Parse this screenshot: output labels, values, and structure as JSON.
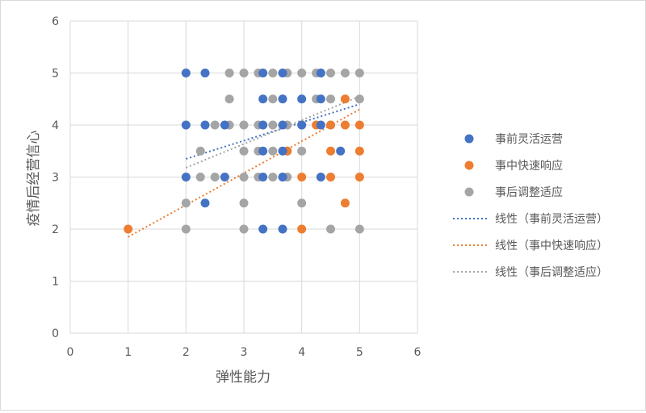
{
  "chart_data": {
    "type": "scatter",
    "title": "",
    "xlabel": "弹性能力",
    "ylabel": "疫情后经营信心",
    "xlim": [
      0,
      6
    ],
    "ylim": [
      0,
      6
    ],
    "xticks": [
      "0",
      "1",
      "2",
      "3",
      "4",
      "5",
      "6"
    ],
    "yticks": [
      "0",
      "1",
      "2",
      "3",
      "4",
      "5",
      "6"
    ],
    "grid": "vertical-and-horizontal",
    "legend_position": "right",
    "series": [
      {
        "name": "事前灵活运营",
        "color": "#4472C4",
        "points": [
          [
            2,
            5
          ],
          [
            2.33,
            5
          ],
          [
            3.33,
            5
          ],
          [
            3.67,
            5
          ],
          [
            4.33,
            5
          ],
          [
            3.33,
            4.5
          ],
          [
            3.67,
            4.5
          ],
          [
            4,
            4.5
          ],
          [
            4.33,
            4.5
          ],
          [
            2,
            4
          ],
          [
            2.33,
            4
          ],
          [
            2.67,
            4
          ],
          [
            3.33,
            4
          ],
          [
            3.67,
            4
          ],
          [
            4,
            4
          ],
          [
            4.33,
            4
          ],
          [
            3.33,
            3.5
          ],
          [
            3.67,
            3.5
          ],
          [
            4.67,
            3.5
          ],
          [
            2,
            3
          ],
          [
            2.67,
            3
          ],
          [
            3.33,
            3
          ],
          [
            3.67,
            3
          ],
          [
            4.33,
            3
          ],
          [
            2.33,
            2.5
          ],
          [
            3.33,
            2
          ],
          [
            3.67,
            2
          ]
        ]
      },
      {
        "name": "事中快速响应",
        "color": "#ED7D31",
        "points": [
          [
            1,
            2
          ],
          [
            4.75,
            4.5
          ],
          [
            4.25,
            4
          ],
          [
            4.5,
            4
          ],
          [
            4.75,
            4
          ],
          [
            5,
            4
          ],
          [
            3.75,
            3.5
          ],
          [
            4.5,
            3.5
          ],
          [
            5,
            3.5
          ],
          [
            4,
            3
          ],
          [
            4.5,
            3
          ],
          [
            5,
            3
          ],
          [
            4.75,
            2.5
          ],
          [
            4,
            2
          ]
        ]
      },
      {
        "name": "事后调整适应",
        "color": "#A5A5A5",
        "points": [
          [
            2.75,
            5
          ],
          [
            3,
            5
          ],
          [
            3.25,
            5
          ],
          [
            3.5,
            5
          ],
          [
            3.75,
            5
          ],
          [
            4,
            5
          ],
          [
            4.25,
            5
          ],
          [
            4.5,
            5
          ],
          [
            4.75,
            5
          ],
          [
            5,
            5
          ],
          [
            2.75,
            4.5
          ],
          [
            3.5,
            4.5
          ],
          [
            4.25,
            4.5
          ],
          [
            4.5,
            4.5
          ],
          [
            5,
            4.5
          ],
          [
            2.5,
            4
          ],
          [
            2.75,
            4
          ],
          [
            3,
            4
          ],
          [
            3.25,
            4
          ],
          [
            3.5,
            4
          ],
          [
            3.75,
            4
          ],
          [
            4,
            4
          ],
          [
            4.5,
            4
          ],
          [
            2.25,
            3.5
          ],
          [
            3,
            3.5
          ],
          [
            3.25,
            3.5
          ],
          [
            3.5,
            3.5
          ],
          [
            3.75,
            3.5
          ],
          [
            4,
            3.5
          ],
          [
            2.25,
            3
          ],
          [
            2.5,
            3
          ],
          [
            3,
            3
          ],
          [
            3.25,
            3
          ],
          [
            3.5,
            3
          ],
          [
            3.75,
            3
          ],
          [
            2,
            2.5
          ],
          [
            3,
            2.5
          ],
          [
            4,
            2.5
          ],
          [
            2,
            2
          ],
          [
            3,
            2
          ],
          [
            4.5,
            2
          ],
          [
            5,
            2
          ]
        ]
      }
    ],
    "trendlines": [
      {
        "name": "线性（事前灵活运营）",
        "color": "#4472C4",
        "x": [
          2,
          5
        ],
        "y": [
          3.35,
          4.4
        ]
      },
      {
        "name": "线性（事中快速响应）",
        "color": "#ED7D31",
        "x": [
          1,
          5
        ],
        "y": [
          1.85,
          4.3
        ]
      },
      {
        "name": "线性（事后调整适应）",
        "color": "#A5A5A5",
        "x": [
          2,
          5
        ],
        "y": [
          3.18,
          4.55
        ]
      }
    ]
  }
}
